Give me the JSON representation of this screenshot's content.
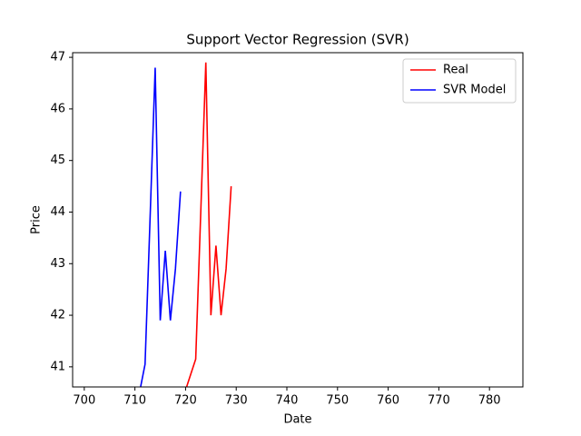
{
  "chart_data": {
    "type": "line",
    "title": "Support Vector Regression (SVR)",
    "xlabel": "Date",
    "ylabel": "Price",
    "series": [
      {
        "name": "Real",
        "color": "#ff0000",
        "x": [
          720,
          721,
          722,
          723,
          724,
          725,
          726,
          727,
          728,
          729
        ],
        "values": [
          40.55,
          40.85,
          41.15,
          44.0,
          46.9,
          42.0,
          43.35,
          42.0,
          42.9,
          44.5
        ]
      },
      {
        "name": "SVR Model",
        "color": "#0000ff",
        "x": [
          710,
          711,
          712,
          713,
          714,
          715,
          716,
          717,
          718,
          719
        ],
        "values": [
          40.1,
          40.55,
          41.05,
          43.9,
          46.8,
          41.9,
          43.25,
          41.9,
          42.9,
          44.4
        ]
      }
    ],
    "xlim": [
      697.7,
      786.6
    ],
    "ylim": [
      40.61,
      47.09
    ],
    "xticks": [
      700,
      710,
      720,
      730,
      740,
      750,
      760,
      770,
      780
    ],
    "yticks": [
      41,
      42,
      43,
      44,
      45,
      46,
      47
    ],
    "legend": "upper right"
  }
}
